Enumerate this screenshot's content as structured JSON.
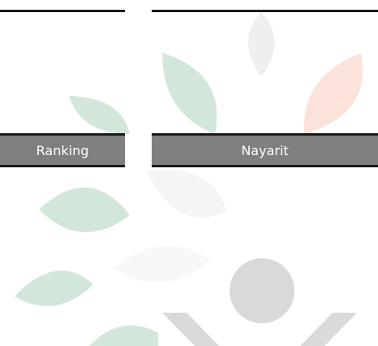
{
  "columns": {
    "left_header": "Ranking",
    "right_header": "Nayarit"
  }
}
